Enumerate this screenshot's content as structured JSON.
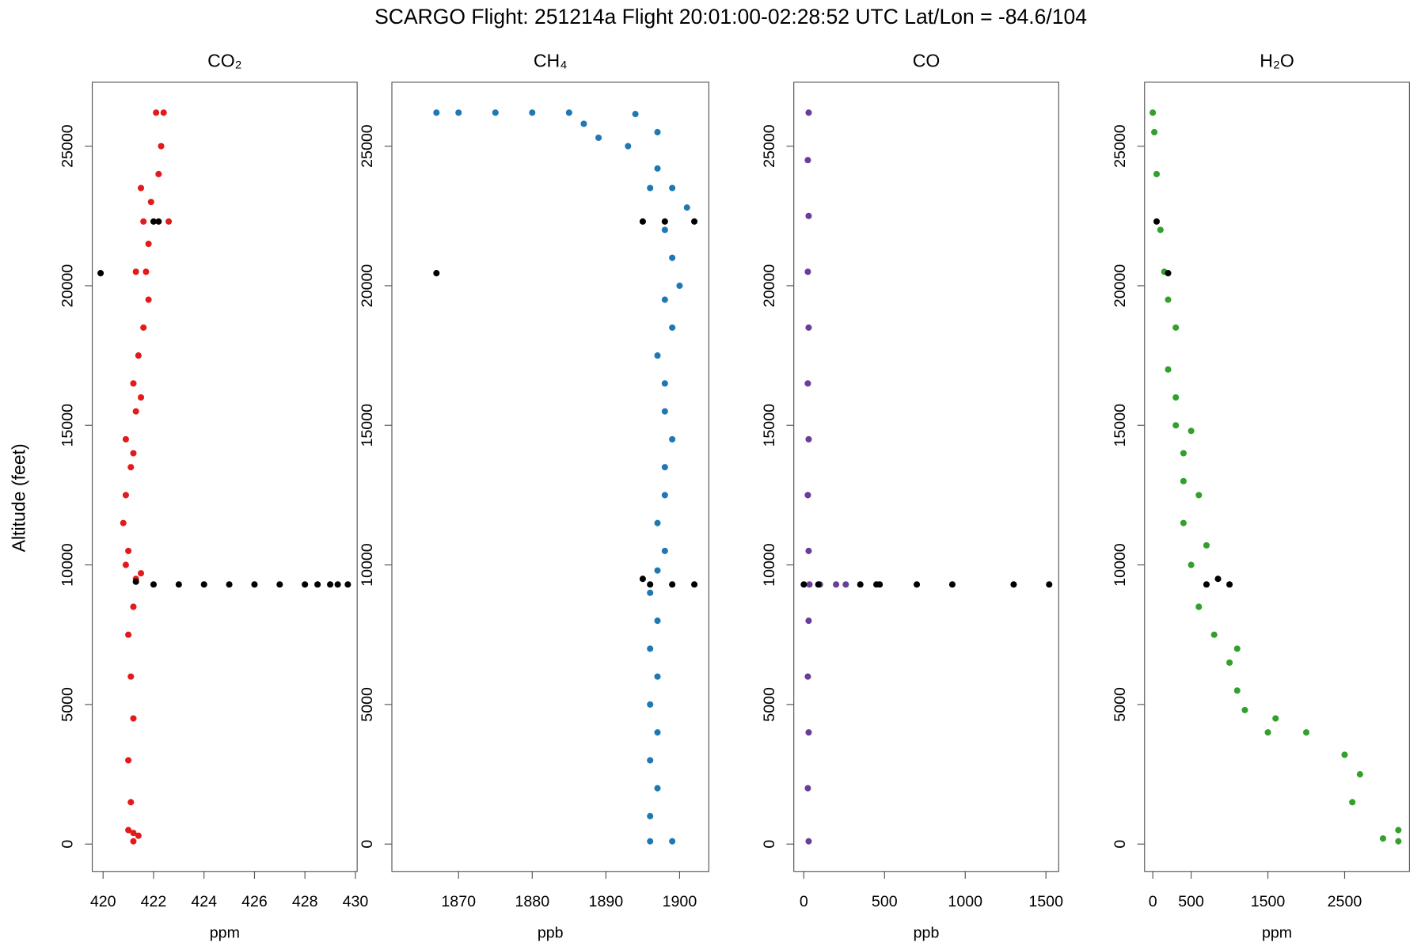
{
  "title": "SCARGO Flight: 251214a  Flight  20:01:00-02:28:52 UTC  Lat/Lon = -84.6/104",
  "ylabel": "Altitude (feet)",
  "chart_data": [
    {
      "type": "scatter",
      "title": "CO₂",
      "xlabel": "ppm",
      "xlim": [
        419.57,
        430.07
      ],
      "xticks": [
        420,
        422,
        424,
        426,
        428,
        430
      ],
      "ylim": [
        -980,
        27290
      ],
      "yticks": [
        0,
        5000,
        10000,
        15000,
        20000,
        25000
      ],
      "series": [
        {
          "color": "#e31a1c",
          "x": [
            421.2,
            421.0,
            421.1,
            421.0,
            421.2,
            421.1,
            421.0,
            421.2,
            421.3,
            421.5,
            421.0,
            420.8,
            420.9,
            421.1,
            420.9,
            421.3,
            421.2,
            421.4,
            421.6,
            421.8,
            421.7,
            421.3,
            421.8,
            421.6,
            422.6,
            421.9,
            422.2,
            422.3,
            422.1,
            422.4,
            421.5,
            421.2,
            421.5,
            420.9,
            421.2,
            421.4
          ],
          "values": [
            100,
            500,
            1500,
            3000,
            4500,
            6000,
            7500,
            8500,
            9500,
            9700,
            10500,
            11500,
            12500,
            13500,
            14500,
            15500,
            16500,
            17500,
            18500,
            19500,
            20500,
            20500,
            21500,
            22300,
            22300,
            23000,
            24000,
            25000,
            26200,
            26200,
            23500,
            14000,
            16000,
            10000,
            400,
            300
          ]
        },
        {
          "color": "#000000",
          "x": [
            419.9,
            422.0,
            422.2,
            421.3,
            422,
            423,
            424,
            425,
            426,
            427,
            428,
            428.5,
            429,
            429.3,
            429.7
          ],
          "values": [
            20450,
            22300,
            22300,
            9400,
            9300,
            9300,
            9300,
            9300,
            9300,
            9300,
            9300,
            9300,
            9300,
            9300,
            9300
          ]
        }
      ]
    },
    {
      "type": "scatter",
      "title": "CH₄",
      "xlabel": "ppb",
      "xlim": [
        1860.95,
        1903.97
      ],
      "xticks": [
        1870,
        1880,
        1890,
        1900
      ],
      "ylim": [
        -980,
        27290
      ],
      "yticks": [
        0,
        5000,
        10000,
        15000,
        20000,
        25000
      ],
      "series": [
        {
          "color": "#1f78b4",
          "x": [
            1896,
            1899,
            1896,
            1897,
            1896,
            1897,
            1896,
            1897,
            1896,
            1897,
            1896,
            1897,
            1898,
            1897,
            1898,
            1898,
            1899,
            1898,
            1898,
            1897,
            1899,
            1898,
            1900,
            1899,
            1898,
            1901,
            1896,
            1899,
            1897,
            1893,
            1889,
            1897,
            1880,
            1870,
            1867,
            1875,
            1885,
            1894,
            1887
          ],
          "values": [
            100,
            100,
            1000,
            2000,
            3000,
            4000,
            5000,
            6000,
            7000,
            8000,
            9000,
            9800,
            10500,
            11500,
            12500,
            13500,
            14500,
            15500,
            16500,
            17500,
            18500,
            19500,
            20000,
            21000,
            22000,
            22800,
            23500,
            23500,
            24200,
            25000,
            25300,
            25500,
            26200,
            26200,
            26200,
            26200,
            26200,
            26150,
            25800
          ]
        },
        {
          "color": "#000000",
          "x": [
            1867,
            1895,
            1898,
            1902,
            1896,
            1899,
            1902,
            1895
          ],
          "values": [
            20450,
            22300,
            22300,
            22300,
            9300,
            9300,
            9300,
            9500
          ]
        }
      ]
    },
    {
      "type": "scatter",
      "title": "CO",
      "xlabel": "ppb",
      "xlim": [
        -62,
        1579
      ],
      "xticks": [
        0,
        500,
        1000,
        1500
      ],
      "ylim": [
        -980,
        27290
      ],
      "yticks": [
        0,
        5000,
        10000,
        15000,
        20000,
        25000
      ],
      "series": [
        {
          "color": "#6a3d9a",
          "x": [
            30,
            25,
            30,
            25,
            30,
            35,
            100,
            200,
            260,
            30,
            25,
            30,
            25,
            30,
            25,
            30,
            25,
            30
          ],
          "values": [
            100,
            2000,
            4000,
            6000,
            8000,
            9300,
            9300,
            9300,
            9300,
            10500,
            12500,
            14500,
            16500,
            18500,
            20500,
            22500,
            24500,
            26200
          ]
        },
        {
          "color": "#000000",
          "x": [
            0,
            90,
            350,
            450,
            470,
            700,
            920,
            1300,
            1520
          ],
          "values": [
            9300,
            9300,
            9300,
            9300,
            9300,
            9300,
            9300,
            9300,
            9300
          ]
        }
      ]
    },
    {
      "type": "scatter",
      "title": "H₂O",
      "xlabel": "ppm",
      "xlim": [
        -107,
        3345
      ],
      "xticks": [
        0,
        500,
        1500,
        2500
      ],
      "ylim": [
        -980,
        27290
      ],
      "yticks": [
        0,
        5000,
        10000,
        15000,
        20000,
        25000
      ],
      "series": [
        {
          "color": "#33a02c",
          "x": [
            3200,
            3000,
            3200,
            2600,
            2700,
            2500,
            2000,
            1600,
            1200,
            1500,
            1100,
            1000,
            1100,
            800,
            600,
            500,
            700,
            400,
            600,
            400,
            400,
            500,
            300,
            300,
            200,
            300,
            200,
            150,
            100,
            50,
            20,
            0
          ],
          "values": [
            100,
            200,
            500,
            1500,
            2500,
            3200,
            4000,
            4500,
            4800,
            4000,
            5500,
            6500,
            7000,
            7500,
            8500,
            10000,
            10700,
            11500,
            12500,
            13000,
            14000,
            14800,
            15000,
            16000,
            17000,
            18500,
            19500,
            20500,
            22000,
            24000,
            25500,
            26200
          ]
        },
        {
          "color": "#000000",
          "x": [
            50,
            200,
            700,
            1000,
            850
          ],
          "values": [
            22300,
            20450,
            9300,
            9300,
            9500
          ]
        }
      ]
    }
  ]
}
